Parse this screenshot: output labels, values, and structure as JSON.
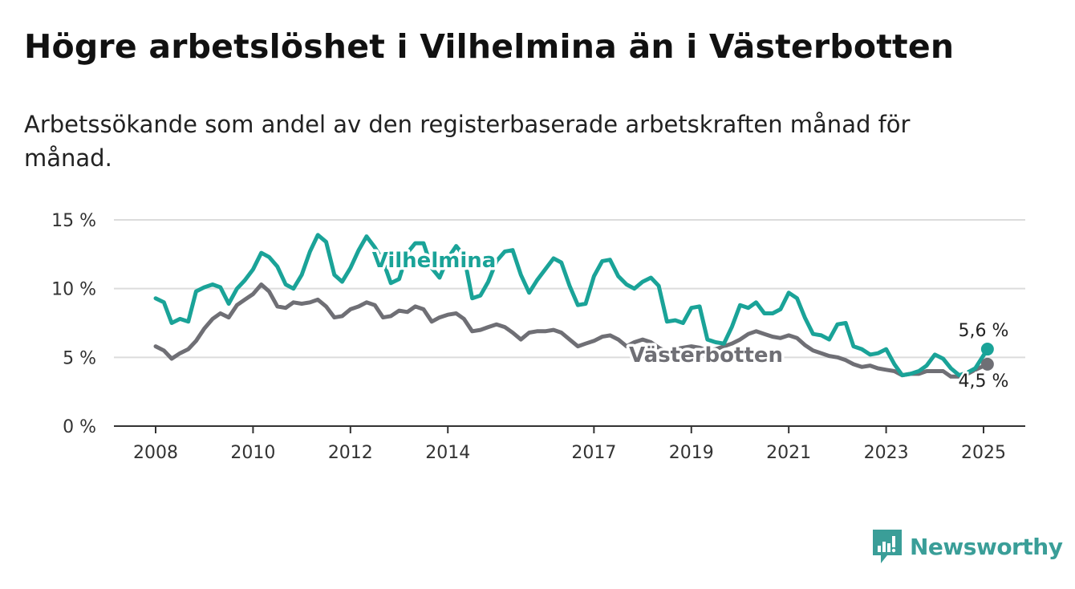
{
  "header": {
    "title": "Högre arbetslöshet i Vilhelmina än i Västerbotten",
    "subtitle": "Arbetssökande som andel av den registerbaserade arbetskraften månad för månad."
  },
  "brand": {
    "name": "Newsworthy",
    "icon": "newsworthy-logo-icon",
    "color": "#3a9e98"
  },
  "chart_data": {
    "type": "line",
    "title": "Högre arbetslöshet i Vilhelmina än i Västerbotten",
    "subtitle": "Arbetssökande som andel av den registerbaserade arbetskraften månad för månad.",
    "xlabel": "",
    "ylabel": "",
    "xlim": [
      2007.9,
      2025.9
    ],
    "ylim": [
      0,
      15
    ],
    "x_ticks": [
      2008,
      2010,
      2012,
      2014,
      2017,
      2019,
      2021,
      2023,
      2025
    ],
    "x_tick_labels": [
      "2008",
      "2010",
      "2012",
      "2014",
      "2017",
      "2019",
      "2021",
      "2023",
      "2025"
    ],
    "y_ticks": [
      0,
      5,
      10,
      15
    ],
    "y_tick_labels": [
      "0 %",
      "5 %",
      "10 %",
      "15 %"
    ],
    "grid": true,
    "series": [
      {
        "name": "Vilhelmina",
        "color": "#1aa398",
        "end_label": "5,6 %",
        "points": [
          [
            2008.0,
            9.3
          ],
          [
            2008.17,
            9.0
          ],
          [
            2008.33,
            7.5
          ],
          [
            2008.5,
            7.8
          ],
          [
            2008.67,
            7.6
          ],
          [
            2008.83,
            9.8
          ],
          [
            2009.0,
            10.1
          ],
          [
            2009.17,
            10.3
          ],
          [
            2009.33,
            10.1
          ],
          [
            2009.5,
            8.9
          ],
          [
            2009.67,
            10.0
          ],
          [
            2009.83,
            10.6
          ],
          [
            2010.0,
            11.4
          ],
          [
            2010.17,
            12.6
          ],
          [
            2010.33,
            12.3
          ],
          [
            2010.5,
            11.6
          ],
          [
            2010.67,
            10.3
          ],
          [
            2010.83,
            10.0
          ],
          [
            2011.0,
            11.0
          ],
          [
            2011.17,
            12.7
          ],
          [
            2011.33,
            13.9
          ],
          [
            2011.5,
            13.4
          ],
          [
            2011.67,
            11.0
          ],
          [
            2011.83,
            10.5
          ],
          [
            2012.0,
            11.5
          ],
          [
            2012.17,
            12.8
          ],
          [
            2012.33,
            13.8
          ],
          [
            2012.5,
            13.0
          ],
          [
            2012.67,
            12.0
          ],
          [
            2012.83,
            10.4
          ],
          [
            2013.0,
            10.7
          ],
          [
            2013.17,
            12.6
          ],
          [
            2013.33,
            13.3
          ],
          [
            2013.5,
            13.3
          ],
          [
            2013.67,
            11.5
          ],
          [
            2013.83,
            10.8
          ],
          [
            2014.0,
            12.2
          ],
          [
            2014.17,
            13.1
          ],
          [
            2014.33,
            12.4
          ],
          [
            2014.5,
            9.3
          ],
          [
            2014.67,
            9.5
          ],
          [
            2014.83,
            10.5
          ],
          [
            2015.0,
            12.0
          ],
          [
            2015.17,
            12.7
          ],
          [
            2015.33,
            12.8
          ],
          [
            2015.5,
            11.0
          ],
          [
            2015.67,
            9.7
          ],
          [
            2015.83,
            10.6
          ],
          [
            2016.0,
            11.4
          ],
          [
            2016.17,
            12.2
          ],
          [
            2016.33,
            11.9
          ],
          [
            2016.5,
            10.2
          ],
          [
            2016.67,
            8.8
          ],
          [
            2016.83,
            8.9
          ],
          [
            2017.0,
            10.9
          ],
          [
            2017.17,
            12.0
          ],
          [
            2017.33,
            12.1
          ],
          [
            2017.5,
            10.9
          ],
          [
            2017.67,
            10.3
          ],
          [
            2017.83,
            10.0
          ],
          [
            2018.0,
            10.5
          ],
          [
            2018.17,
            10.8
          ],
          [
            2018.33,
            10.2
          ],
          [
            2018.5,
            7.6
          ],
          [
            2018.67,
            7.7
          ],
          [
            2018.83,
            7.5
          ],
          [
            2019.0,
            8.6
          ],
          [
            2019.17,
            8.7
          ],
          [
            2019.33,
            6.3
          ],
          [
            2019.5,
            6.1
          ],
          [
            2019.67,
            6.0
          ],
          [
            2019.83,
            7.2
          ],
          [
            2020.0,
            8.8
          ],
          [
            2020.17,
            8.6
          ],
          [
            2020.33,
            9.0
          ],
          [
            2020.5,
            8.2
          ],
          [
            2020.67,
            8.2
          ],
          [
            2020.83,
            8.5
          ],
          [
            2021.0,
            9.7
          ],
          [
            2021.17,
            9.3
          ],
          [
            2021.33,
            7.9
          ],
          [
            2021.5,
            6.7
          ],
          [
            2021.67,
            6.6
          ],
          [
            2021.83,
            6.3
          ],
          [
            2022.0,
            7.4
          ],
          [
            2022.17,
            7.5
          ],
          [
            2022.33,
            5.8
          ],
          [
            2022.5,
            5.6
          ],
          [
            2022.67,
            5.2
          ],
          [
            2022.83,
            5.3
          ],
          [
            2023.0,
            5.6
          ],
          [
            2023.17,
            4.5
          ],
          [
            2023.33,
            3.7
          ],
          [
            2023.5,
            3.8
          ],
          [
            2023.67,
            4.0
          ],
          [
            2023.83,
            4.4
          ],
          [
            2024.0,
            5.2
          ],
          [
            2024.17,
            4.9
          ],
          [
            2024.33,
            4.2
          ],
          [
            2024.5,
            3.7
          ],
          [
            2024.67,
            3.9
          ],
          [
            2024.83,
            4.2
          ],
          [
            2025.08,
            5.6
          ]
        ]
      },
      {
        "name": "Västerbotten",
        "color": "#6f6f75",
        "end_label": "4,5 %",
        "points": [
          [
            2008.0,
            5.8
          ],
          [
            2008.17,
            5.5
          ],
          [
            2008.33,
            4.9
          ],
          [
            2008.5,
            5.3
          ],
          [
            2008.67,
            5.6
          ],
          [
            2008.83,
            6.2
          ],
          [
            2009.0,
            7.1
          ],
          [
            2009.17,
            7.8
          ],
          [
            2009.33,
            8.2
          ],
          [
            2009.5,
            7.9
          ],
          [
            2009.67,
            8.8
          ],
          [
            2009.83,
            9.2
          ],
          [
            2010.0,
            9.6
          ],
          [
            2010.17,
            10.3
          ],
          [
            2010.33,
            9.8
          ],
          [
            2010.5,
            8.7
          ],
          [
            2010.67,
            8.6
          ],
          [
            2010.83,
            9.0
          ],
          [
            2011.0,
            8.9
          ],
          [
            2011.17,
            9.0
          ],
          [
            2011.33,
            9.2
          ],
          [
            2011.5,
            8.7
          ],
          [
            2011.67,
            7.9
          ],
          [
            2011.83,
            8.0
          ],
          [
            2012.0,
            8.5
          ],
          [
            2012.17,
            8.7
          ],
          [
            2012.33,
            9.0
          ],
          [
            2012.5,
            8.8
          ],
          [
            2012.67,
            7.9
          ],
          [
            2012.83,
            8.0
          ],
          [
            2013.0,
            8.4
          ],
          [
            2013.17,
            8.3
          ],
          [
            2013.33,
            8.7
          ],
          [
            2013.5,
            8.5
          ],
          [
            2013.67,
            7.6
          ],
          [
            2013.83,
            7.9
          ],
          [
            2014.0,
            8.1
          ],
          [
            2014.17,
            8.2
          ],
          [
            2014.33,
            7.8
          ],
          [
            2014.5,
            6.9
          ],
          [
            2014.67,
            7.0
          ],
          [
            2014.83,
            7.2
          ],
          [
            2015.0,
            7.4
          ],
          [
            2015.17,
            7.2
          ],
          [
            2015.33,
            6.8
          ],
          [
            2015.5,
            6.3
          ],
          [
            2015.67,
            6.8
          ],
          [
            2015.83,
            6.9
          ],
          [
            2016.0,
            6.9
          ],
          [
            2016.17,
            7.0
          ],
          [
            2016.33,
            6.8
          ],
          [
            2016.5,
            6.3
          ],
          [
            2016.67,
            5.8
          ],
          [
            2016.83,
            6.0
          ],
          [
            2017.0,
            6.2
          ],
          [
            2017.17,
            6.5
          ],
          [
            2017.33,
            6.6
          ],
          [
            2017.5,
            6.3
          ],
          [
            2017.67,
            5.8
          ],
          [
            2017.83,
            6.1
          ],
          [
            2018.0,
            6.3
          ],
          [
            2018.17,
            6.1
          ],
          [
            2018.33,
            5.7
          ],
          [
            2018.5,
            5.4
          ],
          [
            2018.67,
            5.6
          ],
          [
            2018.83,
            5.7
          ],
          [
            2019.0,
            5.8
          ],
          [
            2019.17,
            5.7
          ],
          [
            2019.33,
            5.5
          ],
          [
            2019.5,
            5.6
          ],
          [
            2019.67,
            5.8
          ],
          [
            2019.83,
            6.0
          ],
          [
            2020.0,
            6.3
          ],
          [
            2020.17,
            6.7
          ],
          [
            2020.33,
            6.9
          ],
          [
            2020.5,
            6.7
          ],
          [
            2020.67,
            6.5
          ],
          [
            2020.83,
            6.4
          ],
          [
            2021.0,
            6.6
          ],
          [
            2021.17,
            6.4
          ],
          [
            2021.33,
            5.9
          ],
          [
            2021.5,
            5.5
          ],
          [
            2021.67,
            5.3
          ],
          [
            2021.83,
            5.1
          ],
          [
            2022.0,
            5.0
          ],
          [
            2022.17,
            4.8
          ],
          [
            2022.33,
            4.5
          ],
          [
            2022.5,
            4.3
          ],
          [
            2022.67,
            4.4
          ],
          [
            2022.83,
            4.2
          ],
          [
            2023.0,
            4.1
          ],
          [
            2023.17,
            4.0
          ],
          [
            2023.33,
            3.7
          ],
          [
            2023.5,
            3.8
          ],
          [
            2023.67,
            3.8
          ],
          [
            2023.83,
            4.0
          ],
          [
            2024.0,
            4.0
          ],
          [
            2024.17,
            4.0
          ],
          [
            2024.33,
            3.6
          ],
          [
            2024.5,
            3.6
          ],
          [
            2024.67,
            3.8
          ],
          [
            2024.83,
            4.1
          ],
          [
            2025.08,
            4.5
          ]
        ]
      }
    ]
  }
}
